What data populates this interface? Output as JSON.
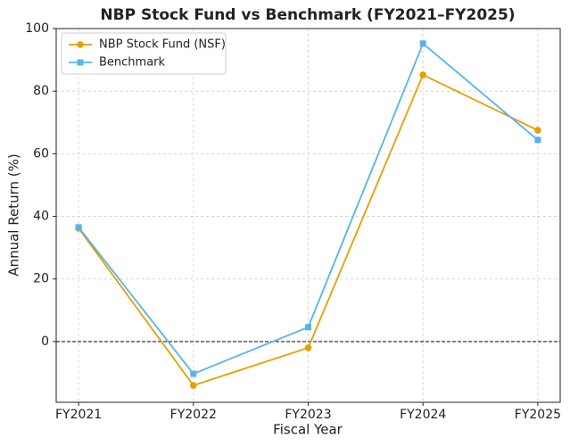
{
  "chart_data": {
    "type": "line",
    "title": "NBP Stock Fund vs Benchmark (FY2021–FY2025)",
    "x_label": "Fiscal Year",
    "y_label": "Annual Return (%)",
    "categories": [
      "FY2021",
      "FY2022",
      "FY2023",
      "FY2024",
      "FY2025"
    ],
    "series": [
      {
        "name": "NBP Stock Fund (NSF)",
        "color": "#e69f00",
        "marker": "circle",
        "values": [
          36.2,
          -14.0,
          -2.0,
          85.2,
          67.5
        ]
      },
      {
        "name": "Benchmark",
        "color": "#56b4e9",
        "marker": "square",
        "values": [
          36.5,
          -10.3,
          4.6,
          95.2,
          64.4
        ]
      }
    ],
    "ylim": [
      -19.4,
      100
    ],
    "yticks": [
      0,
      20,
      40,
      60,
      80,
      100
    ],
    "reference_line": 0,
    "grid": true,
    "legend": "upper-left"
  }
}
